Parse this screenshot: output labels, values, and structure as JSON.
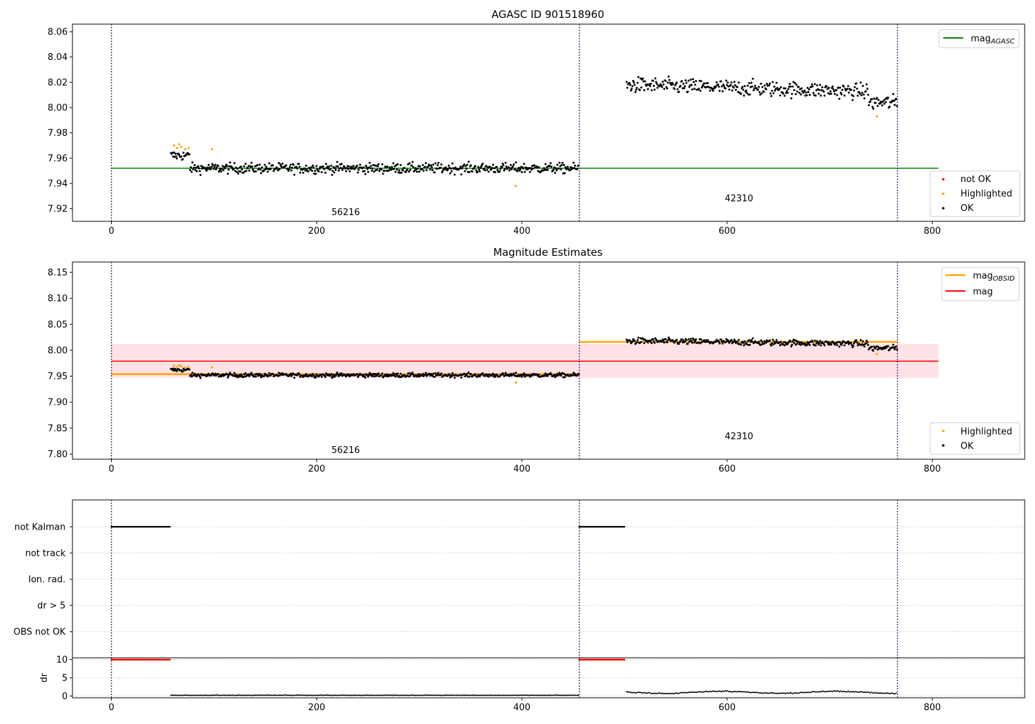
{
  "chart_data": [
    {
      "type": "scatter",
      "title": "AGASC ID 901518960",
      "ylim": [
        7.91,
        8.066
      ],
      "xlim": [
        -38,
        890
      ],
      "xticks": [
        "0",
        "200",
        "400",
        "600",
        "800"
      ],
      "yticks": [
        "7.92",
        "7.94",
        "7.96",
        "7.98",
        "8.00",
        "8.02",
        "8.04",
        "8.06"
      ],
      "obs_boundaries": [
        0,
        456,
        766
      ],
      "obs_labels": [
        {
          "text": "56216",
          "x": 228,
          "y": 7.915
        },
        {
          "text": "42310",
          "x": 611,
          "y": 7.926
        }
      ],
      "reference_lines": [
        {
          "name": "mag_AGASC",
          "y": 7.952,
          "x_range": [
            0,
            806
          ],
          "color": "#008000"
        }
      ],
      "scatter_series": [
        {
          "name": "not OK",
          "color": "#ff0000",
          "points": []
        },
        {
          "name": "Highlighted",
          "color": "#ffa500",
          "points": [
            [
              61,
              7.97
            ],
            [
              64,
              7.968
            ],
            [
              66,
              7.971
            ],
            [
              68,
              7.969
            ],
            [
              72,
              7.967
            ],
            [
              75,
              7.968
            ],
            [
              98,
              7.967
            ],
            [
              394,
              7.938
            ],
            [
              746,
              7.993
            ]
          ]
        },
        {
          "name": "OK",
          "segments": [
            {
              "x_start": 58,
              "x_end": 456,
              "mean": 7.952,
              "early_mean": 7.962,
              "early_until": 76,
              "scatter": 0.004,
              "color": "#000000"
            },
            {
              "x_start": 502,
              "x_end": 766,
              "mean": 8.018,
              "trend_end": 8.012,
              "dip_from": 738,
              "dip_mean": 8.004,
              "scatter": 0.006,
              "color": "#000000"
            }
          ]
        }
      ],
      "legend_upper": [
        "mag_AGASC"
      ],
      "legend_lower": [
        "not OK",
        "Highlighted",
        "OK"
      ]
    },
    {
      "type": "scatter",
      "title": "Magnitude Estimates",
      "ylim": [
        7.79,
        8.17
      ],
      "xlim": [
        -38,
        890
      ],
      "xticks": [
        "0",
        "200",
        "400",
        "600",
        "800"
      ],
      "yticks": [
        "7.80",
        "7.85",
        "7.90",
        "7.95",
        "8.00",
        "8.05",
        "8.10",
        "8.15"
      ],
      "obs_boundaries": [
        0,
        456,
        766
      ],
      "obs_labels": [
        {
          "text": "56216",
          "x": 228,
          "y": 7.8
        },
        {
          "text": "42310",
          "x": 611,
          "y": 7.83
        }
      ],
      "band": {
        "y0": 7.947,
        "y1": 8.012,
        "x_range": [
          0,
          806
        ],
        "color": "#ffb6c1"
      },
      "reference_lines": [
        {
          "name": "mag",
          "y": 7.979,
          "x_range": [
            0,
            806
          ],
          "color": "#ff0000"
        },
        {
          "name": "mag_OBSID",
          "y": 7.954,
          "x_range": [
            0,
            456
          ],
          "color": "#ffa500"
        },
        {
          "name": "mag_OBSID",
          "y": 8.016,
          "x_range": [
            456,
            766
          ],
          "color": "#ffa500"
        }
      ],
      "scatter_series": [
        {
          "name": "Highlighted",
          "color": "#ffa500",
          "points": [
            [
              61,
              7.97
            ],
            [
              64,
              7.968
            ],
            [
              66,
              7.971
            ],
            [
              68,
              7.969
            ],
            [
              72,
              7.967
            ],
            [
              75,
              7.968
            ],
            [
              98,
              7.967
            ],
            [
              394,
              7.938
            ],
            [
              746,
              7.993
            ]
          ]
        },
        {
          "name": "OK",
          "segments": [
            {
              "x_start": 58,
              "x_end": 456,
              "mean": 7.952,
              "early_mean": 7.962,
              "early_until": 76,
              "scatter": 0.004,
              "color": "#000000"
            },
            {
              "x_start": 502,
              "x_end": 766,
              "mean": 8.018,
              "trend_end": 8.012,
              "dip_from": 738,
              "dip_mean": 8.004,
              "scatter": 0.006,
              "color": "#000000"
            }
          ]
        }
      ],
      "legend_upper": [
        "mag_OBSID",
        "mag"
      ],
      "legend_lower": [
        "Highlighted",
        "OK"
      ]
    },
    {
      "type": "scatter",
      "title": "",
      "xlim": [
        -38,
        890
      ],
      "xticks": [
        "0",
        "200",
        "400",
        "600",
        "800"
      ],
      "categories": [
        "not Kalman",
        "not track",
        "Ion. rad.",
        "dr > 5",
        "OBS not OK"
      ],
      "obs_boundaries": [
        0,
        456,
        766
      ],
      "flag_series": [
        {
          "category": "not Kalman",
          "x_ranges": [
            [
              0,
              57
            ],
            [
              456,
              500
            ]
          ],
          "color": "#000000"
        }
      ]
    },
    {
      "type": "scatter",
      "title": "",
      "ylabel": "dr",
      "ylim": [
        -0.5,
        10.5
      ],
      "xlim": [
        -38,
        890
      ],
      "xticks": [
        "0",
        "200",
        "400",
        "600",
        "800"
      ],
      "yticks": [
        "0",
        "5",
        "10"
      ],
      "obs_boundaries": [
        0,
        456,
        766
      ],
      "series": [
        {
          "name": "dr clipped",
          "x_ranges": [
            [
              0,
              57
            ],
            [
              456,
              500
            ]
          ],
          "y": 10,
          "color": "#ff0000"
        },
        {
          "name": "dr",
          "segments": [
            {
              "x_start": 58,
              "x_end": 456,
              "mean": 0.15,
              "scatter": 0.1
            },
            {
              "x_start": 502,
              "x_end": 766,
              "mean": 1.0,
              "scatter": 0.4
            }
          ],
          "color": "#000000"
        }
      ]
    }
  ],
  "labels": {
    "title1": "AGASC ID 901518960",
    "title2": "Magnitude Estimates",
    "obs_a": "56216",
    "obs_b": "42310",
    "leg_mag_agasc_main": "mag",
    "leg_mag_agasc_sub": "AGASC",
    "leg_mag_obsid_main": "mag",
    "leg_mag_obsid_sub": "OBSID",
    "leg_mag": "mag",
    "leg_not_ok": "not OK",
    "leg_highlighted": "Highlighted",
    "leg_ok": "OK",
    "dr_label": "dr"
  }
}
